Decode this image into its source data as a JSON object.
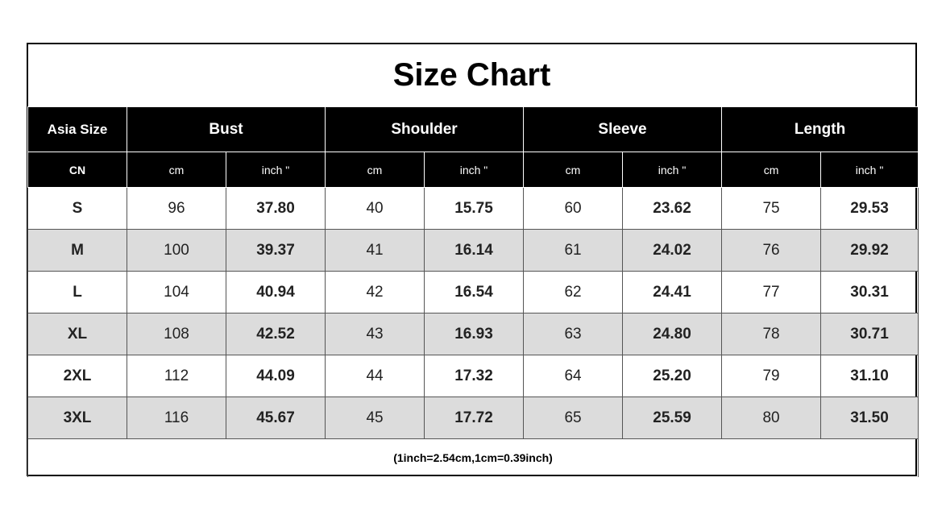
{
  "chart_data": {
    "type": "table",
    "title": "Size Chart",
    "size_header": "Asia Size",
    "unit_label_cn": "CN",
    "groups": [
      "Bust",
      "Shoulder",
      "Sleeve",
      "Length"
    ],
    "unit_cm": "cm",
    "unit_inch": "inch \"",
    "rows": [
      {
        "size": "S",
        "values": [
          "96",
          "37.80",
          "40",
          "15.75",
          "60",
          "23.62",
          "75",
          "29.53"
        ]
      },
      {
        "size": "M",
        "values": [
          "100",
          "39.37",
          "41",
          "16.14",
          "61",
          "24.02",
          "76",
          "29.92"
        ]
      },
      {
        "size": "L",
        "values": [
          "104",
          "40.94",
          "42",
          "16.54",
          "62",
          "24.41",
          "77",
          "30.31"
        ]
      },
      {
        "size": "XL",
        "values": [
          "108",
          "42.52",
          "43",
          "16.93",
          "63",
          "24.80",
          "78",
          "30.71"
        ]
      },
      {
        "size": "2XL",
        "values": [
          "112",
          "44.09",
          "44",
          "17.32",
          "64",
          "25.20",
          "79",
          "31.10"
        ]
      },
      {
        "size": "3XL",
        "values": [
          "116",
          "45.67",
          "45",
          "17.72",
          "65",
          "25.59",
          "80",
          "31.50"
        ]
      }
    ],
    "note": "(1inch=2.54cm,1cm=0.39inch)"
  },
  "colors": {
    "header_bg": "#000000",
    "header_text": "#ffffff",
    "alt_row_bg": "#dcdcdc",
    "inch_value_text": "#1f2f5c"
  }
}
